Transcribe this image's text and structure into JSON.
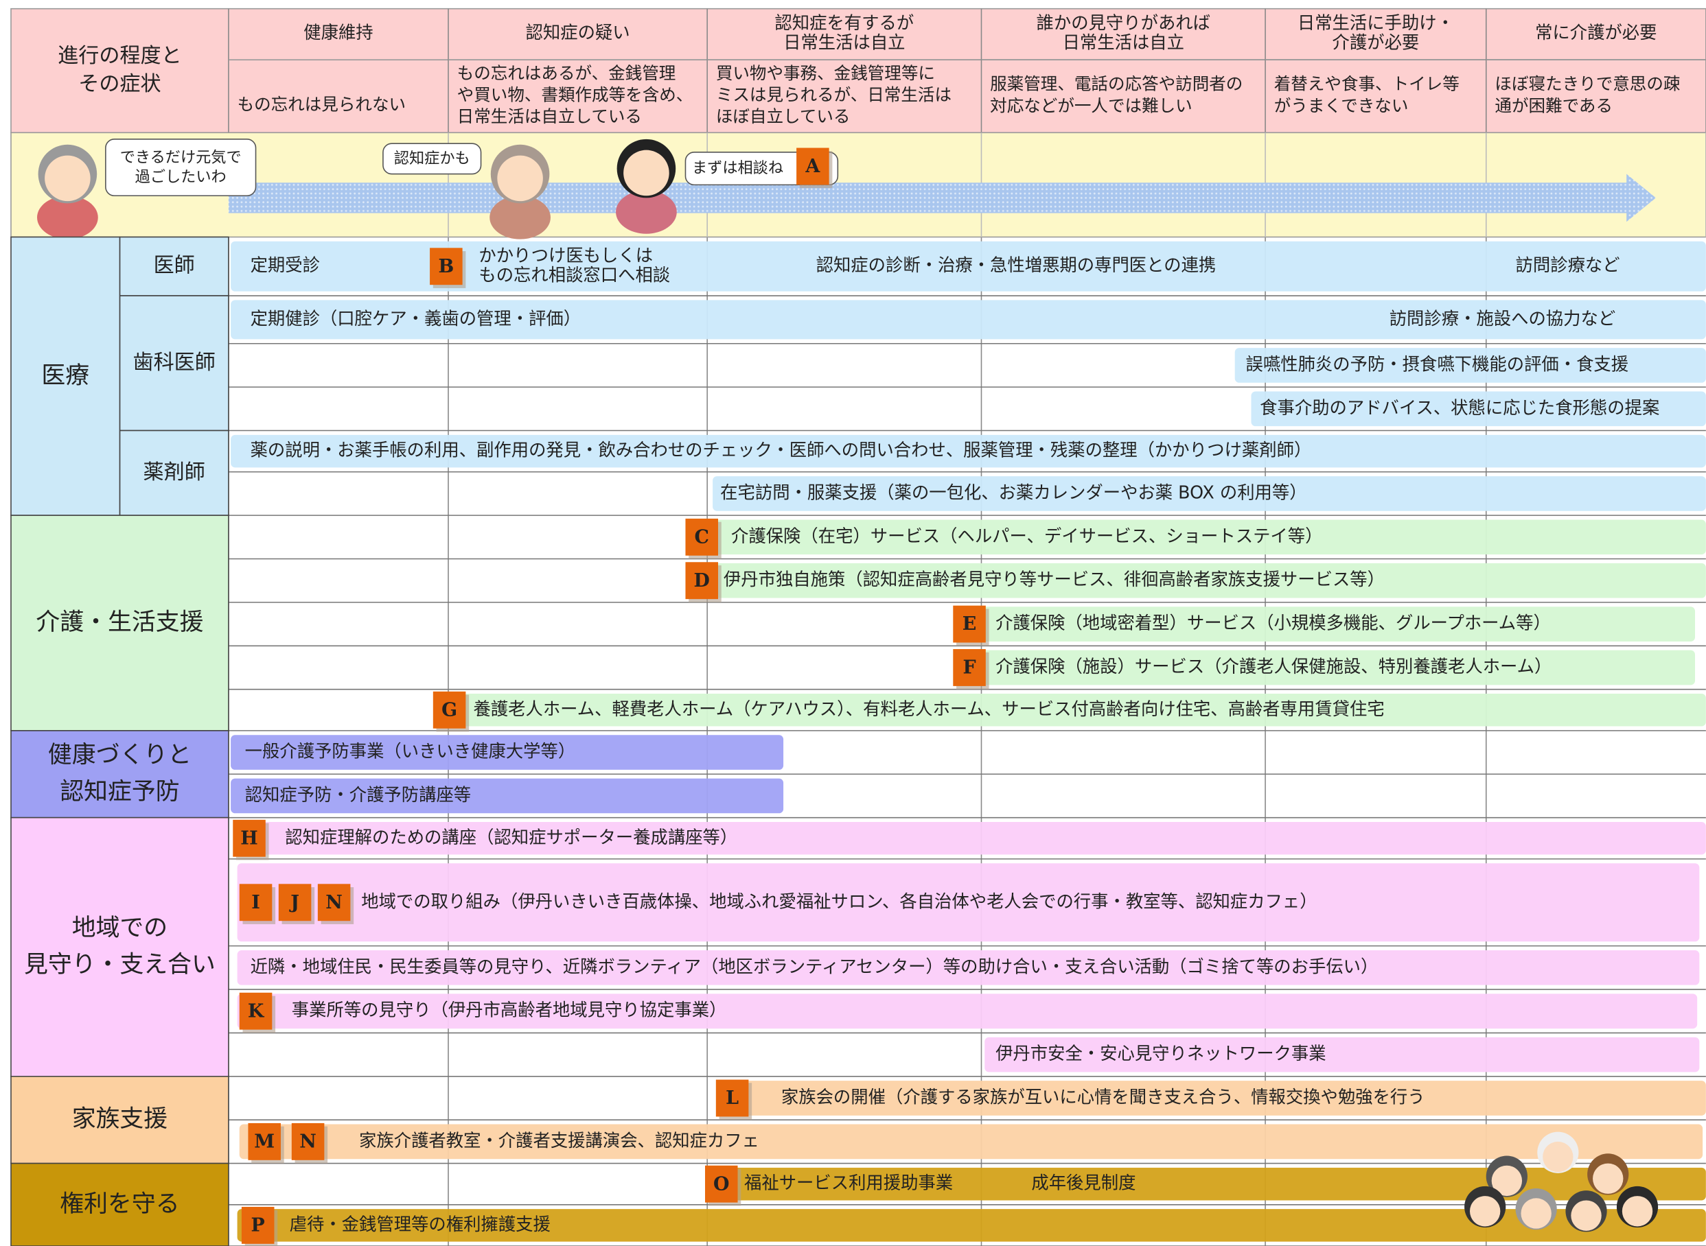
{
  "header": {
    "corner": [
      "進行の程度と",
      "その症状"
    ],
    "stages": [
      {
        "title": [
          "健康維持"
        ],
        "symptom": [
          "もの忘れは見られない"
        ]
      },
      {
        "title": [
          "認知症の疑い"
        ],
        "symptom": [
          "もの忘れはあるが、金銭管理",
          "や買い物、書類作成等を含め、",
          "日常生活は自立している"
        ]
      },
      {
        "title": [
          "認知症を有するが",
          "日常生活は自立"
        ],
        "symptom": [
          "買い物や事務、金銭管理等に",
          "ミスは見られるが、日常生活は",
          "ほぼ自立している"
        ]
      },
      {
        "title": [
          "誰かの見守りがあれば",
          "日常生活は自立"
        ],
        "symptom": [
          "服薬管理、電話の応答や訪問者の",
          "対応などが一人では難しい"
        ]
      },
      {
        "title": [
          "日常生活に手助け・",
          "介護が必要"
        ],
        "symptom": [
          "着替えや食事、トイレ等",
          "がうまくできない"
        ]
      },
      {
        "title": [
          "常に介護が必要"
        ],
        "symptom": [
          "ほぼ寝たきりで意思の疎",
          "通が困難である"
        ]
      }
    ]
  },
  "illustration": {
    "bubbles": [
      [
        "できるだけ元気で",
        "過ごしたいわ"
      ],
      [
        "認知症かも"
      ],
      [
        "まずは相談ね"
      ]
    ],
    "badge": "A"
  },
  "sections": [
    {
      "title": [
        "医療"
      ],
      "groups": [
        {
          "title": "医師",
          "rows": [
            [
              {
                "text": [
                  "定期受診"
                ]
              },
              {
                "badge": "B"
              },
              {
                "text": [
                  "かかりつけ医もしくは",
                  "もの忘れ相談窓口へ相談"
                ]
              },
              {
                "text": [
                  "認知症の診断・治療・急性増悪期の専門医との連携"
                ]
              },
              {
                "text": [
                  "訪問診療など"
                ]
              }
            ]
          ]
        },
        {
          "title": "歯科医師",
          "rows": [
            [
              {
                "text": [
                  "定期健診（口腔ケア・義歯の管理・評価）"
                ]
              },
              {
                "text": [
                  "訪問診療・施設への協力など"
                ]
              }
            ],
            [
              {
                "text": [
                  "誤嚥性肺炎の予防・摂食嚥下機能の評価・食支援"
                ]
              }
            ],
            [
              {
                "text": [
                  "食事介助のアドバイス、状態に応じた食形態の提案"
                ]
              }
            ]
          ]
        },
        {
          "title": "薬剤師",
          "rows": [
            [
              {
                "text": [
                  "薬の説明・お薬手帳の利用、副作用の発見・飲み合わせのチェック・医師への問い合わせ、服薬管理・残薬の整理（かかりつけ薬剤師）"
                ]
              }
            ],
            [
              {
                "text": [
                  "在宅訪問・服薬支援（薬の一包化、お薬カレンダーやお薬 BOX の利用等）"
                ]
              }
            ]
          ]
        }
      ]
    },
    {
      "title": [
        "介護・生活支援"
      ],
      "groups": [
        {
          "rows": [
            [
              {
                "badge": "C"
              },
              {
                "text": [
                  "介護保険（在宅）サービス（ヘルパー、デイサービス、ショートステイ等）"
                ]
              }
            ],
            [
              {
                "badge": "D"
              },
              {
                "text": [
                  "伊丹市独自施策（認知症高齢者見守り等サービス、徘徊高齢者家族支援サービス等）"
                ]
              }
            ],
            [
              {
                "badge": "E"
              },
              {
                "text": [
                  "介護保険（地域密着型）サービス（小規模多機能、グループホーム等）"
                ]
              }
            ],
            [
              {
                "badge": "F"
              },
              {
                "text": [
                  "介護保険（施設）サービス（介護老人保健施設、特別養護老人ホーム）"
                ]
              }
            ],
            [
              {
                "badge": "G"
              },
              {
                "text": [
                  "養護老人ホーム、軽費老人ホーム（ケアハウス）、有料老人ホーム、サービス付高齢者向け住宅、高齢者専用賃貸住宅"
                ]
              }
            ]
          ]
        }
      ]
    },
    {
      "title": [
        "健康づくりと",
        "認知症予防"
      ],
      "groups": [
        {
          "rows": [
            [
              {
                "text": [
                  "一般介護予防事業（いきいき健康大学等）"
                ]
              }
            ],
            [
              {
                "text": [
                  "認知症予防・介護予防講座等"
                ]
              }
            ]
          ]
        }
      ]
    },
    {
      "title": [
        "地域での",
        "見守り・支え合い"
      ],
      "groups": [
        {
          "rows": [
            [
              {
                "badge": "H"
              },
              {
                "text": [
                  "認知症理解のための講座（認知症サポーター養成講座等）"
                ]
              }
            ],
            [
              {
                "badge": "I"
              },
              {
                "badge": "J"
              },
              {
                "badge": "N"
              },
              {
                "text": [
                  "地域での取り組み（伊丹いきいき百歳体操、地域ふれ愛福祉サロン、各自治体や老人会での行事・教室等、認知症カフェ）"
                ]
              }
            ],
            [
              {
                "text": [
                  "近隣・地域住民・民生委員等の見守り、近隣ボランティア（地区ボランティアセンター）等の助け合い・支え合い活動（ゴミ捨て等のお手伝い）"
                ]
              }
            ],
            [
              {
                "badge": "K"
              },
              {
                "text": [
                  "事業所等の見守り（伊丹市高齢者地域見守り協定事業）"
                ]
              }
            ],
            [
              {
                "text": [
                  "伊丹市安全・安心見守りネットワーク事業"
                ]
              }
            ]
          ]
        }
      ]
    },
    {
      "title": [
        "家族支援"
      ],
      "groups": [
        {
          "rows": [
            [
              {
                "badge": "L"
              },
              {
                "text": [
                  "家族会の開催（介護する家族が互いに心情を聞き支え合う、情報交換や勉強を行う"
                ]
              }
            ],
            [
              {
                "badge": "M"
              },
              {
                "badge": "N"
              },
              {
                "text": [
                  "家族介護者教室・介護者支援講演会、認知症カフェ"
                ]
              }
            ]
          ]
        }
      ]
    },
    {
      "title": [
        "権利を守る"
      ],
      "groups": [
        {
          "rows": [
            [
              {
                "badge": "O"
              },
              {
                "text": [
                  "福祉サービス利用援助事業"
                ]
              },
              {
                "text": [
                  "成年後見制度"
                ]
              }
            ],
            [
              {
                "badge": "P"
              },
              {
                "text": [
                  "虐待・金銭管理等の権利擁護支援"
                ]
              }
            ]
          ]
        }
      ]
    }
  ]
}
